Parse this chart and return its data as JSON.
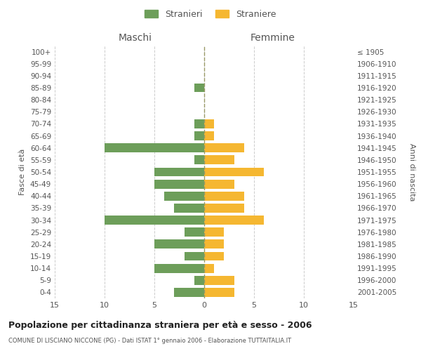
{
  "age_groups": [
    "0-4",
    "5-9",
    "10-14",
    "15-19",
    "20-24",
    "25-29",
    "30-34",
    "35-39",
    "40-44",
    "45-49",
    "50-54",
    "55-59",
    "60-64",
    "65-69",
    "70-74",
    "75-79",
    "80-84",
    "85-89",
    "90-94",
    "95-99",
    "100+"
  ],
  "birth_years": [
    "2001-2005",
    "1996-2000",
    "1991-1995",
    "1986-1990",
    "1981-1985",
    "1976-1980",
    "1971-1975",
    "1966-1970",
    "1961-1965",
    "1956-1960",
    "1951-1955",
    "1946-1950",
    "1941-1945",
    "1936-1940",
    "1931-1935",
    "1926-1930",
    "1921-1925",
    "1916-1920",
    "1911-1915",
    "1906-1910",
    "≤ 1905"
  ],
  "males": [
    3,
    1,
    5,
    2,
    5,
    2,
    10,
    3,
    4,
    5,
    5,
    1,
    10,
    1,
    1,
    0,
    0,
    1,
    0,
    0,
    0
  ],
  "females": [
    3,
    3,
    1,
    2,
    2,
    2,
    6,
    4,
    4,
    3,
    6,
    3,
    4,
    1,
    1,
    0,
    0,
    0,
    0,
    0,
    0
  ],
  "male_color": "#6d9e5a",
  "female_color": "#f5b731",
  "background_color": "#ffffff",
  "grid_color": "#cccccc",
  "title": "Popolazione per cittadinanza straniera per età e sesso - 2006",
  "subtitle": "COMUNE DI LISCIANO NICCONE (PG) - Dati ISTAT 1° gennaio 2006 - Elaborazione TUTTAITALIA.IT",
  "ylabel_left": "Fasce di età",
  "ylabel_right": "Anni di nascita",
  "xlabel_left": "Maschi",
  "xlabel_right": "Femmine",
  "xlim": 15,
  "legend_male": "Stranieri",
  "legend_female": "Straniere",
  "dashed_line_color": "#999966"
}
